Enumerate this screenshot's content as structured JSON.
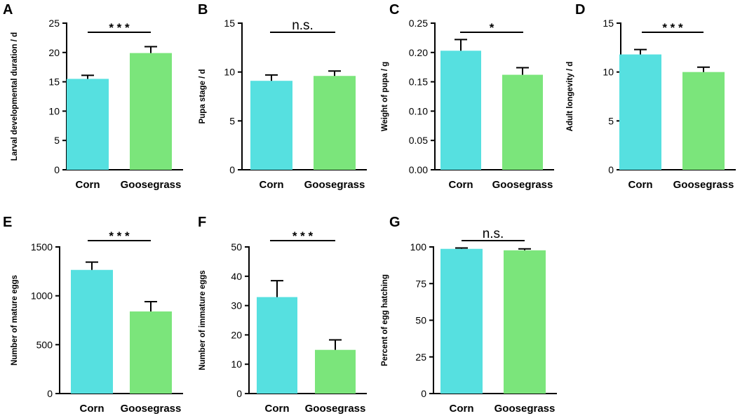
{
  "chart_data": [
    {
      "panel": "A",
      "type": "bar",
      "categories": [
        "Corn",
        "Goosegrass"
      ],
      "values": [
        15.5,
        19.9
      ],
      "errors": [
        0.6,
        1.1
      ],
      "ylabel": "Larval developmental duration / d",
      "ylim": [
        0,
        25
      ],
      "yticks": [
        "0",
        "5",
        "10",
        "15",
        "20",
        "25"
      ],
      "significance": "* * *",
      "colors": [
        "#56E0E0",
        "#7BE57B"
      ]
    },
    {
      "panel": "B",
      "type": "bar",
      "categories": [
        "Corn",
        "Goosegrass"
      ],
      "values": [
        9.1,
        9.6
      ],
      "errors": [
        0.6,
        0.5
      ],
      "ylabel": "Pupa stage / d",
      "ylim": [
        0,
        15
      ],
      "yticks": [
        "0",
        "5",
        "10",
        "15"
      ],
      "significance": "n.s.",
      "colors": [
        "#56E0E0",
        "#7BE57B"
      ]
    },
    {
      "panel": "C",
      "type": "bar",
      "categories": [
        "Corn",
        "Goosegrass"
      ],
      "values": [
        0.203,
        0.162
      ],
      "errors": [
        0.019,
        0.012
      ],
      "ylabel": "Weight of pupa / g",
      "ylim": [
        0,
        0.25
      ],
      "yticks": [
        "0.00",
        "0.05",
        "0.10",
        "0.15",
        "0.20",
        "0.25"
      ],
      "significance": "*",
      "colors": [
        "#56E0E0",
        "#7BE57B"
      ]
    },
    {
      "panel": "D",
      "type": "bar",
      "categories": [
        "Corn",
        "Goosegrass"
      ],
      "values": [
        11.8,
        10.0
      ],
      "errors": [
        0.5,
        0.5
      ],
      "ylabel": "Adult longevity / d",
      "ylim": [
        0,
        15
      ],
      "yticks": [
        "0",
        "5",
        "10",
        "15"
      ],
      "significance": "* * *",
      "colors": [
        "#56E0E0",
        "#7BE57B"
      ]
    },
    {
      "panel": "E",
      "type": "bar",
      "categories": [
        "Corn",
        "Goosegrass"
      ],
      "values": [
        1265,
        840
      ],
      "errors": [
        80,
        100
      ],
      "ylabel": "Number of mature eggs",
      "ylim": [
        0,
        1500
      ],
      "yticks": [
        "0",
        "500",
        "1000",
        "1500"
      ],
      "significance": "* * *",
      "colors": [
        "#56E0E0",
        "#7BE57B"
      ]
    },
    {
      "panel": "F",
      "type": "bar",
      "categories": [
        "Corn",
        "Goosegrass"
      ],
      "values": [
        32.9,
        14.9
      ],
      "errors": [
        5.6,
        3.4
      ],
      "ylabel": "Number of immature eggs",
      "ylim": [
        0,
        50
      ],
      "yticks": [
        "0",
        "10",
        "20",
        "30",
        "40",
        "50"
      ],
      "significance": "* * *",
      "colors": [
        "#56E0E0",
        "#7BE57B"
      ]
    },
    {
      "panel": "G",
      "type": "bar",
      "categories": [
        "Corn",
        "Goosegrass"
      ],
      "values": [
        98.7,
        97.7
      ],
      "errors": [
        0.6,
        1.0
      ],
      "ylabel": "Percent of egg hatching",
      "ylim": [
        0,
        100
      ],
      "yticks": [
        "0",
        "25",
        "50",
        "75",
        "100"
      ],
      "significance": "n.s.",
      "colors": [
        "#56E0E0",
        "#7BE57B"
      ]
    }
  ]
}
